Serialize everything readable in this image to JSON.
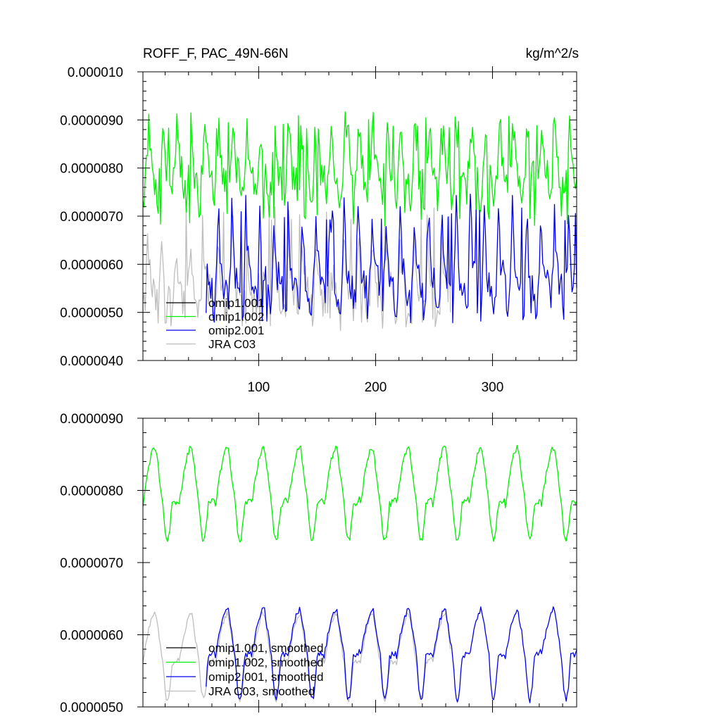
{
  "chart_data": [
    {
      "type": "line",
      "title": "ROFF_F, PAC_49N-66N",
      "units": "kg/m^2/s",
      "xlim": [
        1,
        372
      ],
      "ylim": [
        4e-06,
        1e-05
      ],
      "yticks": [
        "0.000010",
        "0.0000090",
        "0.0000080",
        "0.0000070",
        "0.0000060",
        "0.0000050",
        "0.0000040"
      ],
      "xticks": [
        "100",
        "200",
        "300"
      ],
      "legend": [
        "omip1.001",
        "omip1.002",
        "omip2.001",
        "JRA C03"
      ],
      "legend_position": "bottom-left",
      "colors": [
        "#000000",
        "#00ee00",
        "#0000ee",
        "#bebebe"
      ],
      "series": [
        {
          "name": "omip1.001",
          "color": "#000000",
          "x_start": 1,
          "x_end": 0,
          "values": []
        },
        {
          "name": "omip1.002",
          "color": "#00ee00",
          "x_start": 1,
          "x_end": 372,
          "monthly": [
            7.4e-06,
            7.4e-06,
            7.8e-06,
            8e-06,
            8.6e-06,
            8.8e-06,
            8.5e-06,
            8.2e-06,
            7.9e-06,
            7.9e-06,
            7.8e-06,
            7.7e-06
          ],
          "annual_min": 6.8e-06,
          "annual_max": 9.1e-06
        },
        {
          "name": "omip2.001",
          "color": "#0000ee",
          "x_start": 55,
          "x_end": 372,
          "monthly": [
            5.2e-06,
            5.1e-06,
            5.5e-06,
            6.2e-06,
            7.1e-06,
            6.6e-06,
            6.1e-06,
            5.8e-06,
            5.7e-06,
            5.6e-06,
            5.5e-06,
            5.4e-06
          ],
          "annual_min": 4.8e-06,
          "annual_max": 7.2e-06
        },
        {
          "name": "JRA C03",
          "color": "#bebebe",
          "x_start": 1,
          "x_end": 264,
          "monthly": [
            5.1e-06,
            5e-06,
            5.3e-06,
            5.8e-06,
            6.4e-06,
            6.2e-06,
            5.8e-06,
            5.6e-06,
            5.5e-06,
            5.4e-06,
            5.3e-06,
            5.2e-06
          ],
          "annual_min": 4.7e-06,
          "annual_max": 7.2e-06
        }
      ]
    },
    {
      "type": "line",
      "title": "",
      "units": "",
      "xlim": [
        1,
        372
      ],
      "ylim": [
        5e-06,
        9e-06
      ],
      "yticks": [
        "0.0000090",
        "0.0000080",
        "0.0000070",
        "0.0000060",
        "0.0000050"
      ],
      "xticks": [],
      "legend": [
        "omip1.001, smoothed",
        "omip1.002, smoothed",
        "omip2.001, smoothed",
        "JRA C03, smoothed"
      ],
      "legend_position": "bottom-left",
      "colors": [
        "#000000",
        "#00ee00",
        "#0000ee",
        "#bebebe"
      ],
      "series": [
        {
          "name": "omip1.001, smoothed",
          "color": "#000000",
          "x_start": 1,
          "x_end": 0,
          "values": []
        },
        {
          "name": "omip1.002, smoothed",
          "color": "#00ee00",
          "x_start": 1,
          "x_end": 372,
          "peak": 8.6e-06,
          "trough": 7.3e-06,
          "baseline": 7.8e-06
        },
        {
          "name": "omip2.001, smoothed",
          "color": "#0000ee",
          "x_start": 55,
          "x_end": 372,
          "peak": 6.35e-06,
          "trough": 5.1e-06,
          "baseline": 5.7e-06
        },
        {
          "name": "JRA C03, smoothed",
          "color": "#bebebe",
          "x_start": 1,
          "x_end": 264,
          "peak": 6.3e-06,
          "trough": 5.1e-06,
          "baseline": 5.6e-06
        }
      ]
    }
  ]
}
